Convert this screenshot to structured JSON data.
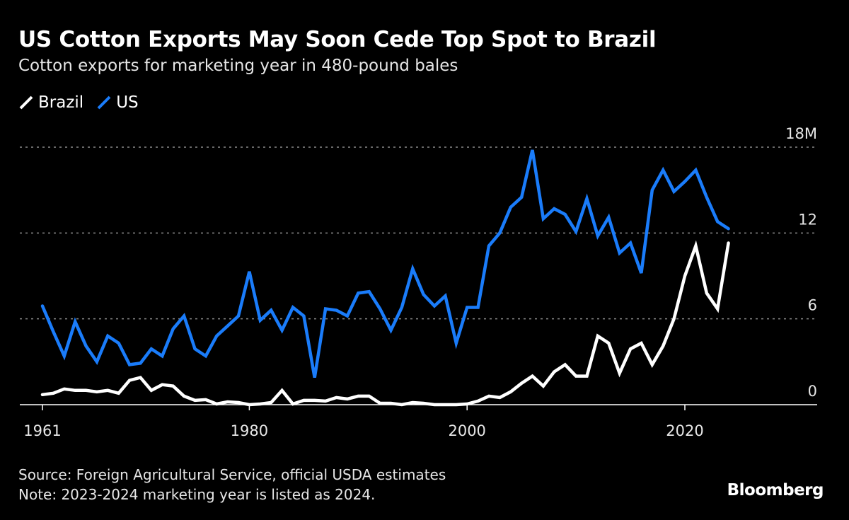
{
  "chart_data": {
    "type": "line",
    "title": "US Cotton Exports May Soon Cede Top Spot to Brazil",
    "subtitle": "Cotton exports for marketing year in 480-pound bales",
    "xlabel": "",
    "ylabel": "",
    "xlim": [
      1959,
      2033
    ],
    "ylim": [
      0,
      18
    ],
    "x_ticks": [
      1961,
      1980,
      2000,
      2020
    ],
    "x_tick_labels": [
      "1961",
      "1980",
      "2000",
      "2020"
    ],
    "y_ticks": [
      0,
      6,
      12,
      18
    ],
    "y_tick_labels": [
      "0",
      "6",
      "12",
      "18M"
    ],
    "grid": "horizontal dotted",
    "legend_position": "top-left",
    "x": [
      1961,
      1962,
      1963,
      1964,
      1965,
      1966,
      1967,
      1968,
      1969,
      1970,
      1971,
      1972,
      1973,
      1974,
      1975,
      1976,
      1977,
      1978,
      1979,
      1980,
      1981,
      1982,
      1983,
      1984,
      1985,
      1986,
      1987,
      1988,
      1989,
      1990,
      1991,
      1992,
      1993,
      1994,
      1995,
      1996,
      1997,
      1998,
      1999,
      2000,
      2001,
      2002,
      2003,
      2004,
      2005,
      2006,
      2007,
      2008,
      2009,
      2010,
      2011,
      2012,
      2013,
      2014,
      2015,
      2016,
      2017,
      2018,
      2019,
      2020,
      2021,
      2022,
      2023,
      2024
    ],
    "series": [
      {
        "name": "Brazil",
        "color": "#ffffff",
        "values": [
          0.7,
          0.8,
          1.1,
          1.0,
          1.0,
          0.9,
          1.0,
          0.8,
          1.7,
          1.9,
          1.0,
          1.4,
          1.3,
          0.6,
          0.3,
          0.35,
          0.05,
          0.2,
          0.15,
          0.0,
          0.05,
          0.15,
          1.0,
          0.05,
          0.3,
          0.3,
          0.25,
          0.5,
          0.4,
          0.6,
          0.6,
          0.1,
          0.1,
          0.0,
          0.15,
          0.1,
          0.0,
          0.0,
          0.0,
          0.05,
          0.25,
          0.6,
          0.5,
          0.9,
          1.5,
          2.0,
          1.3,
          2.3,
          2.8,
          2.0,
          2.0,
          4.8,
          4.3,
          2.2,
          3.9,
          4.3,
          2.8,
          4.1,
          6.0,
          9.0,
          11.1,
          7.8,
          6.7,
          11.3
        ]
      },
      {
        "name": "US",
        "color": "#1a7cfa",
        "values": [
          6.9,
          5.1,
          3.4,
          5.8,
          4.1,
          3.0,
          4.8,
          4.3,
          2.8,
          2.9,
          3.9,
          3.4,
          5.3,
          6.2,
          3.9,
          3.4,
          4.8,
          5.5,
          6.2,
          9.3,
          5.9,
          6.6,
          5.2,
          6.8,
          6.2,
          1.9,
          6.7,
          6.6,
          6.2,
          7.8,
          7.9,
          6.7,
          5.2,
          6.8,
          9.5,
          7.7,
          6.9,
          7.6,
          4.3,
          6.8,
          6.8,
          11.1,
          12.0,
          13.8,
          14.5,
          17.8,
          13.0,
          13.7,
          13.3,
          12.1,
          14.4,
          11.8,
          13.1,
          10.6,
          11.3,
          9.2,
          15.0,
          16.4,
          14.9,
          15.6,
          16.4,
          14.5,
          12.8,
          12.3
        ]
      }
    ]
  },
  "footer": {
    "source": "Source: Foreign Agricultural Service, official USDA estimates",
    "note": "Note: 2023-2024 marketing year is listed as 2024."
  },
  "brand": "Bloomberg"
}
